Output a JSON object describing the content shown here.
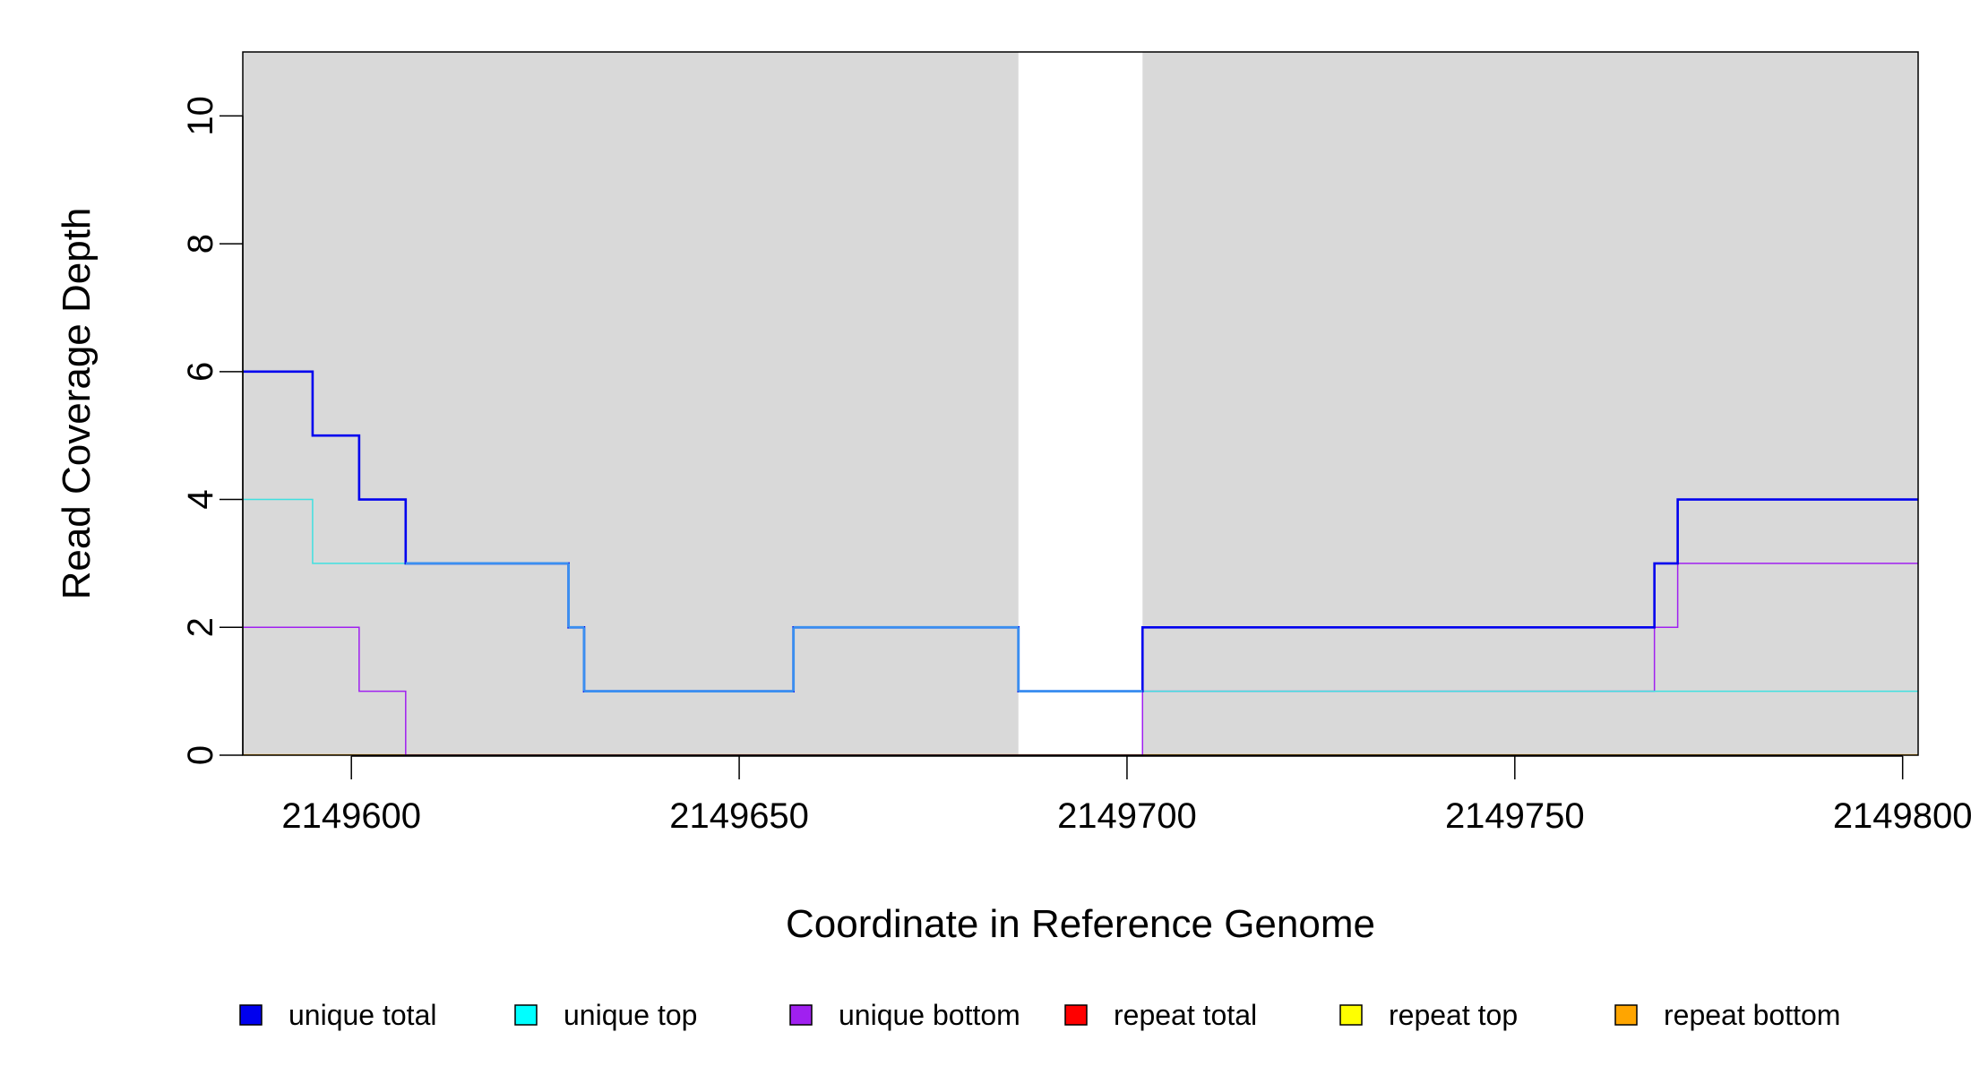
{
  "chart_data": {
    "type": "line",
    "title": "",
    "xlabel": "Coordinate in Reference Genome",
    "ylabel": "Read Coverage Depth",
    "xlim": [
      2149586,
      2149802
    ],
    "ylim": [
      0,
      11
    ],
    "x_ticks": [
      2149600,
      2149650,
      2149700,
      2149750,
      2149800
    ],
    "x_tick_labels": [
      "2149600",
      "2149650",
      "2149700",
      "2149750",
      "2149800"
    ],
    "y_ticks": [
      0,
      2,
      4,
      6,
      8,
      10
    ],
    "y_tick_labels": [
      "0",
      "2",
      "4",
      "6",
      "8",
      "10"
    ],
    "background_color": "#d9d9d9",
    "highlight_region": {
      "x_start": 2149686,
      "x_end": 2149702,
      "color": "#ffffff"
    },
    "step": true,
    "series": [
      {
        "name": "unique total",
        "color": "#0000ee",
        "x": [
          2149586,
          2149595,
          2149601,
          2149607,
          2149628,
          2149630,
          2149657,
          2149686,
          2149702,
          2149768,
          2149771,
          2149802
        ],
        "values": [
          6,
          5,
          4,
          3,
          2,
          1,
          2,
          1,
          2,
          3,
          4,
          4
        ]
      },
      {
        "name": "unique top",
        "color": "#40e0e0",
        "x": [
          2149586,
          2149595,
          2149628,
          2149630,
          2149657,
          2149686,
          2149768,
          2149802
        ],
        "values": [
          4,
          3,
          2,
          1,
          2,
          1,
          1,
          1
        ]
      },
      {
        "name": "unique bottom",
        "color": "#a020f0",
        "x": [
          2149586,
          2149601,
          2149607,
          2149702,
          2149768,
          2149771,
          2149802
        ],
        "values": [
          2,
          1,
          0,
          1,
          2,
          3,
          3
        ]
      },
      {
        "name": "repeat total",
        "color": "#ff0000",
        "x": [
          2149586,
          2149802
        ],
        "values": [
          0,
          0
        ]
      },
      {
        "name": "repeat top",
        "color": "#ffff00",
        "x": [
          2149586,
          2149802
        ],
        "values": [
          0,
          0
        ]
      },
      {
        "name": "repeat bottom",
        "color": "#ffa500",
        "x": [
          2149586,
          2149802
        ],
        "values": [
          0,
          0
        ]
      }
    ],
    "overlap_color": "#3a8ff0",
    "legend": {
      "placement": "bottom",
      "entries": [
        {
          "name": "unique total",
          "color": "#0000ee"
        },
        {
          "name": "unique top",
          "color": "#00ffff"
        },
        {
          "name": "unique bottom",
          "color": "#a020f0"
        },
        {
          "name": "repeat total",
          "color": "#ff0000"
        },
        {
          "name": "repeat top",
          "color": "#ffff00"
        },
        {
          "name": "repeat bottom",
          "color": "#ffa500"
        }
      ]
    }
  }
}
